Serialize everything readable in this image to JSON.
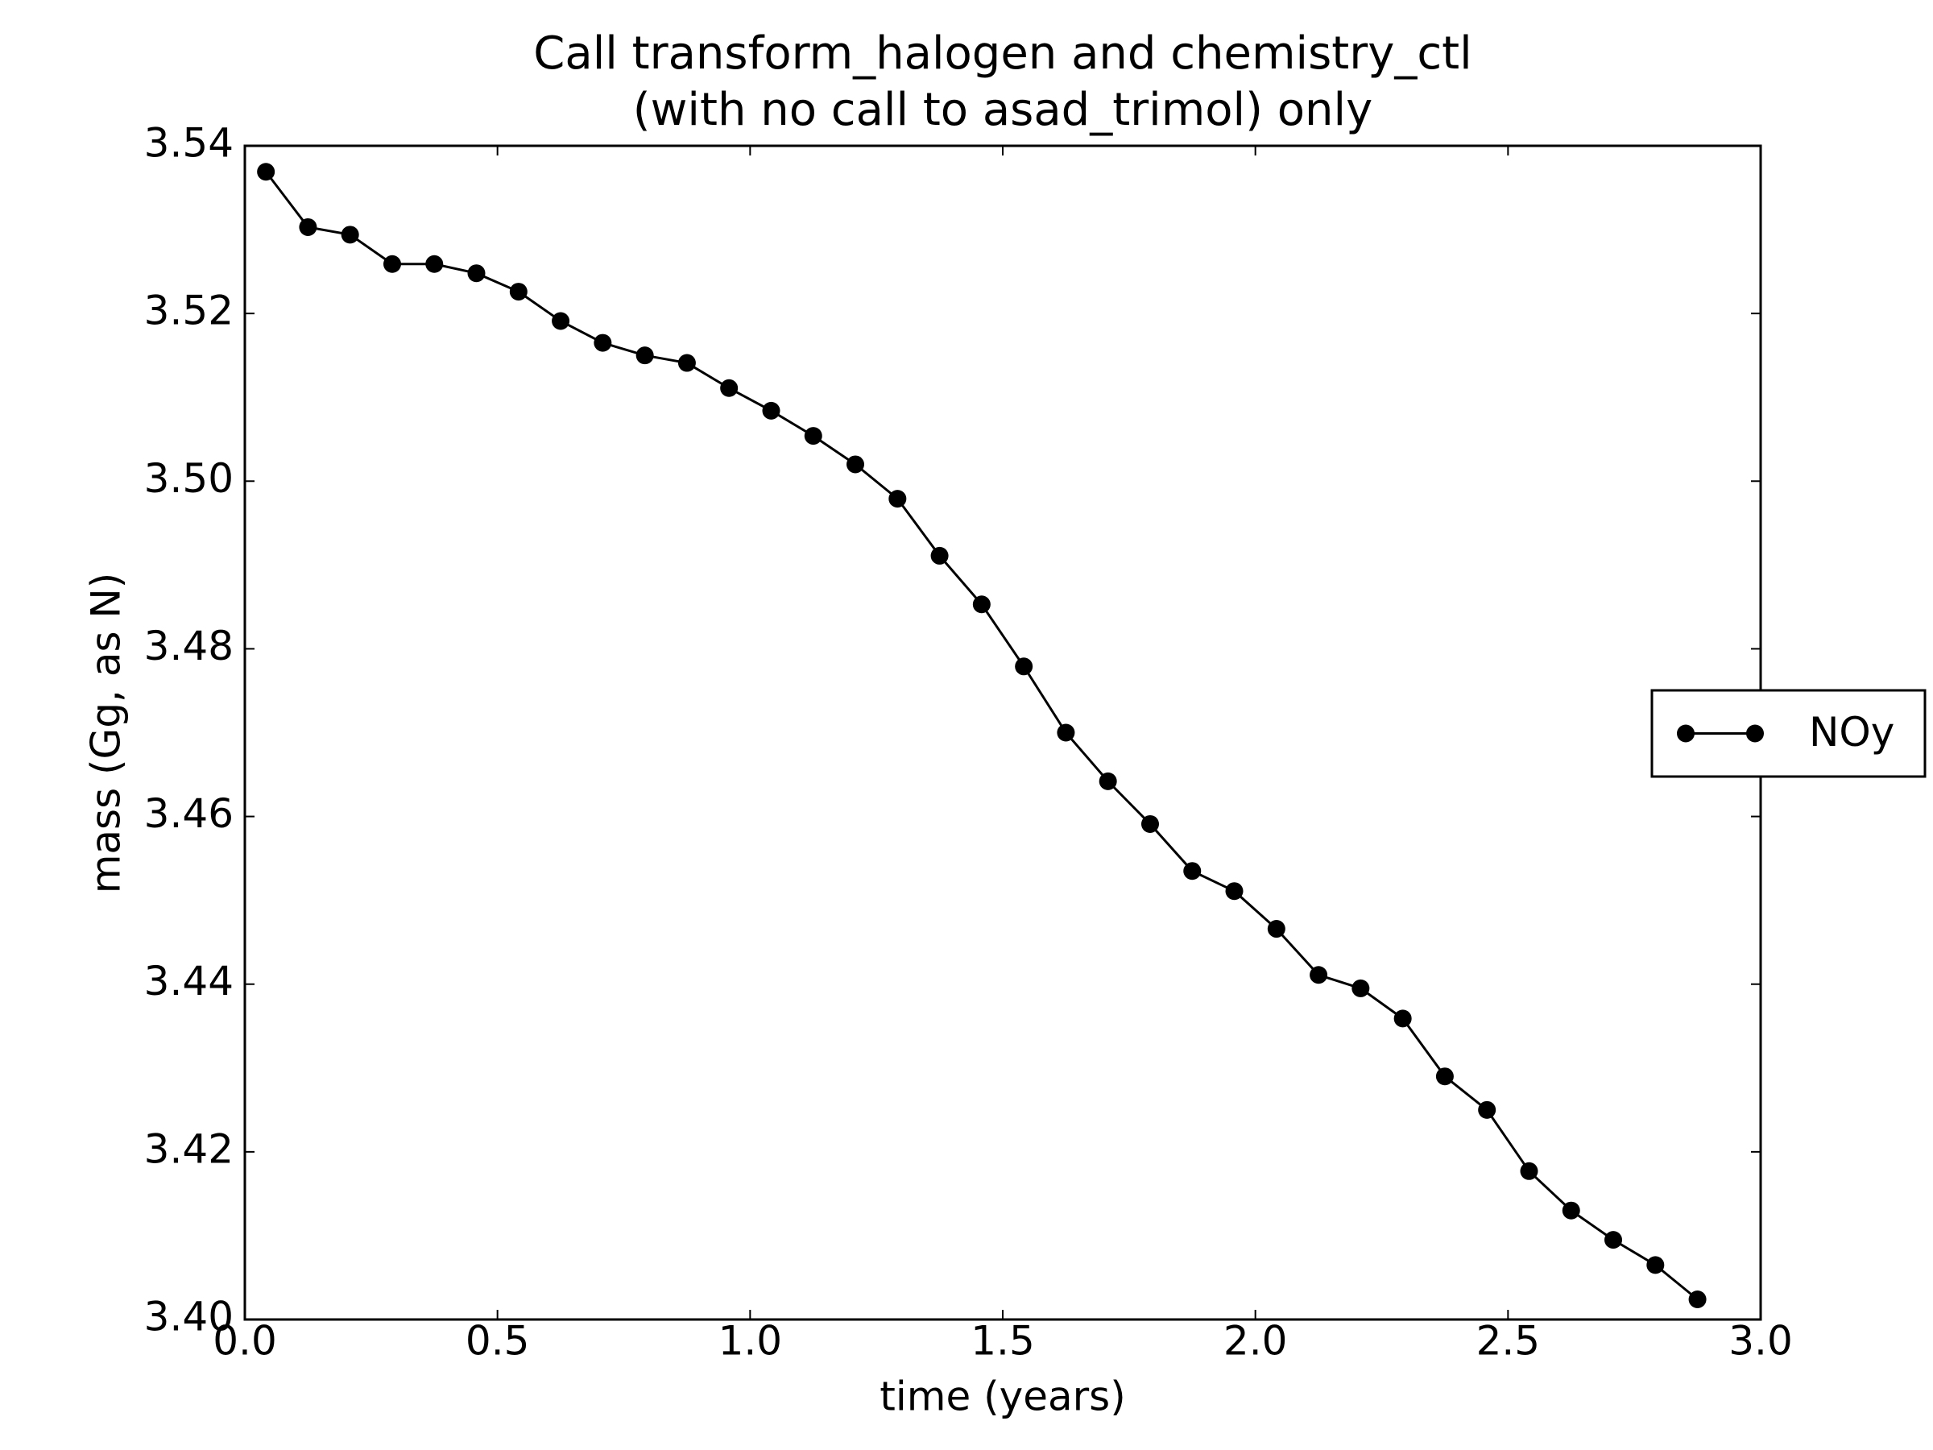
{
  "chart_data": {
    "type": "line",
    "title": [
      "Call transform_halogen and chemistry_ctl",
      "(with no call to asad_trimol) only"
    ],
    "x_label": "time (years)",
    "y_label": "mass (Gg, as N)",
    "x": [
      0.0417,
      0.125,
      0.2083,
      0.2917,
      0.375,
      0.4583,
      0.5417,
      0.625,
      0.7083,
      0.7917,
      0.875,
      0.9583,
      1.0417,
      1.125,
      1.2083,
      1.2917,
      1.375,
      1.4583,
      1.5417,
      1.625,
      1.7083,
      1.7917,
      1.875,
      1.9583,
      2.0417,
      2.125,
      2.2083,
      2.2917,
      2.375,
      2.4583,
      2.5417,
      2.625,
      2.7083,
      2.7917,
      2.875
    ],
    "series": [
      {
        "name": "NOy",
        "color": "#000000",
        "values": [
          3.5369,
          3.5303,
          3.5294,
          3.5259,
          3.5259,
          3.5248,
          3.5226,
          3.5191,
          3.5165,
          3.515,
          3.5141,
          3.5111,
          3.5084,
          3.5054,
          3.502,
          3.4979,
          3.4911,
          3.4853,
          3.4779,
          3.47,
          3.4642,
          3.4591,
          3.4535,
          3.4511,
          3.4466,
          3.4411,
          3.4395,
          3.4359,
          3.429,
          3.425,
          3.4177,
          3.413,
          3.4095,
          3.4065,
          3.4024
        ]
      }
    ],
    "xlim": [
      0,
      3
    ],
    "ylim": [
      3.4,
      3.54
    ],
    "xticks": [
      {
        "value": 0,
        "label": "0.0"
      },
      0.5,
      {
        "value": 1,
        "label": "1.0"
      },
      1.5,
      {
        "value": 2,
        "label": "2.0"
      },
      2.5,
      {
        "value": 3,
        "label": "3.0"
      }
    ],
    "yticks": [
      {
        "value": 3.4,
        "label": "3.40"
      },
      3.42,
      3.44,
      3.46,
      3.48,
      {
        "value": 3.5,
        "label": "3.50"
      },
      3.52,
      3.54
    ],
    "grid": false,
    "legend": "right"
  }
}
